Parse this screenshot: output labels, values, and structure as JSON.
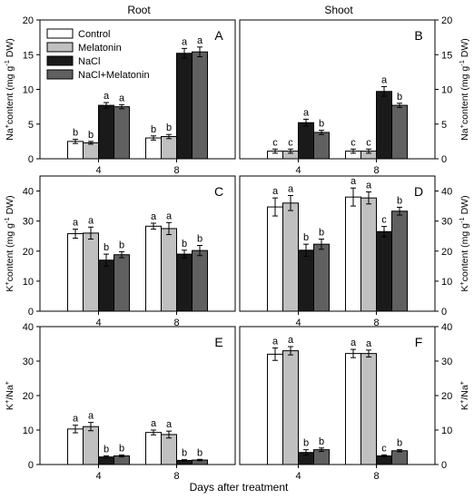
{
  "figure": {
    "col_titles": [
      "Root",
      "Shoot"
    ],
    "xlabel": "Days after treatment",
    "legend": [
      "Control",
      "Melatonin",
      "NaCl",
      "NaCl+Melatonin"
    ],
    "series_colors": [
      "#ffffff",
      "#c0c0c0",
      "#1a1a1a",
      "#606060"
    ]
  },
  "chart_data": [
    {
      "panel": "A",
      "type": "bar",
      "categories": [
        "4",
        "8"
      ],
      "ylabel_base": "Na",
      "ylabel_sup": "+",
      "ylabel_rest": "content (mg g",
      "ylabel_sup2": "-1",
      "ylabel_end": " DW)",
      "ylim": [
        0,
        20
      ],
      "yticks": [
        0,
        5,
        10,
        15,
        20
      ],
      "ytick_labels_side": "left",
      "series": [
        {
          "name": "Control",
          "values": [
            2.5,
            3.0
          ],
          "errors": [
            0.3,
            0.3
          ],
          "letters": [
            "b",
            "b"
          ]
        },
        {
          "name": "Melatonin",
          "values": [
            2.3,
            3.2
          ],
          "errors": [
            0.2,
            0.3
          ],
          "letters": [
            "b",
            "b"
          ]
        },
        {
          "name": "NaCl",
          "values": [
            7.7,
            15.2
          ],
          "errors": [
            0.4,
            0.7
          ],
          "letters": [
            "a",
            "a"
          ]
        },
        {
          "name": "NaCl+Melatonin",
          "values": [
            7.5,
            15.4
          ],
          "errors": [
            0.3,
            0.7
          ],
          "letters": [
            "a",
            "a"
          ]
        }
      ]
    },
    {
      "panel": "B",
      "type": "bar",
      "categories": [
        "4",
        "8"
      ],
      "ylabel_base": "Na",
      "ylabel_sup": "+",
      "ylabel_rest": "content (mg g",
      "ylabel_sup2": "-1",
      "ylabel_end": " DW)",
      "ylim": [
        0,
        20
      ],
      "yticks": [
        0,
        5,
        10,
        15,
        20
      ],
      "ytick_labels_side": "right",
      "series": [
        {
          "name": "Control",
          "values": [
            1.1,
            1.1
          ],
          "errors": [
            0.3,
            0.3
          ],
          "letters": [
            "c",
            "c"
          ]
        },
        {
          "name": "Melatonin",
          "values": [
            1.1,
            1.1
          ],
          "errors": [
            0.3,
            0.3
          ],
          "letters": [
            "c",
            "c"
          ]
        },
        {
          "name": "NaCl",
          "values": [
            5.2,
            9.7
          ],
          "errors": [
            0.5,
            0.7
          ],
          "letters": [
            "a",
            "a"
          ]
        },
        {
          "name": "NaCl+Melatonin",
          "values": [
            3.8,
            7.7
          ],
          "errors": [
            0.3,
            0.3
          ],
          "letters": [
            "b",
            "b"
          ]
        }
      ]
    },
    {
      "panel": "C",
      "type": "bar",
      "categories": [
        "4",
        "8"
      ],
      "ylabel_base": "K",
      "ylabel_sup": "+",
      "ylabel_rest": "content (mg g",
      "ylabel_sup2": "-1",
      "ylabel_end": " DW)",
      "ylim": [
        0,
        45
      ],
      "yticks": [
        0,
        10,
        20,
        30,
        40
      ],
      "ytick_labels_side": "left",
      "series": [
        {
          "name": "Control",
          "values": [
            25.8,
            28.3
          ],
          "errors": [
            1.5,
            1.0
          ],
          "letters": [
            "a",
            "a"
          ]
        },
        {
          "name": "Melatonin",
          "values": [
            26.0,
            27.5
          ],
          "errors": [
            2.0,
            2.0
          ],
          "letters": [
            "a",
            "a"
          ]
        },
        {
          "name": "NaCl",
          "values": [
            17.0,
            19.0
          ],
          "errors": [
            2.0,
            1.3
          ],
          "letters": [
            "b",
            "b"
          ]
        },
        {
          "name": "NaCl+Melatonin",
          "values": [
            18.8,
            20.2
          ],
          "errors": [
            1.0,
            1.7
          ],
          "letters": [
            "b",
            "b"
          ]
        }
      ]
    },
    {
      "panel": "D",
      "type": "bar",
      "categories": [
        "4",
        "8"
      ],
      "ylabel_base": "K",
      "ylabel_sup": "+",
      "ylabel_rest": "content (mg g",
      "ylabel_sup2": "-1",
      "ylabel_end": " DW)",
      "ylim": [
        0,
        45
      ],
      "yticks": [
        0,
        10,
        20,
        30,
        40
      ],
      "ytick_labels_side": "right",
      "series": [
        {
          "name": "Control",
          "values": [
            34.7,
            38.0
          ],
          "errors": [
            3.0,
            3.0
          ],
          "letters": [
            "a",
            "a"
          ]
        },
        {
          "name": "Melatonin",
          "values": [
            36.0,
            37.7
          ],
          "errors": [
            2.5,
            2.0
          ],
          "letters": [
            "a",
            "a"
          ]
        },
        {
          "name": "NaCl",
          "values": [
            20.3,
            26.5
          ],
          "errors": [
            2.0,
            1.7
          ],
          "letters": [
            "b",
            "c"
          ]
        },
        {
          "name": "NaCl+Melatonin",
          "values": [
            22.3,
            33.3
          ],
          "errors": [
            1.7,
            1.3
          ],
          "letters": [
            "b",
            "b"
          ]
        }
      ]
    },
    {
      "panel": "E",
      "type": "bar",
      "categories": [
        "4",
        "8"
      ],
      "ylabel_base": "K",
      "ylabel_sup": "+",
      "ylabel_rest": "/Na",
      "ylabel_sup2": "+",
      "ylabel_end": "",
      "ylim": [
        0,
        40
      ],
      "yticks": [
        0,
        10,
        20,
        30,
        40
      ],
      "ytick_labels_side": "left",
      "series": [
        {
          "name": "Control",
          "values": [
            10.3,
            9.3
          ],
          "errors": [
            1.1,
            0.7
          ],
          "letters": [
            "a",
            "a"
          ]
        },
        {
          "name": "Melatonin",
          "values": [
            11.0,
            8.7
          ],
          "errors": [
            1.2,
            1.0
          ],
          "letters": [
            "a",
            "a"
          ]
        },
        {
          "name": "NaCl",
          "values": [
            2.2,
            1.2
          ],
          "errors": [
            0.3,
            0.2
          ],
          "letters": [
            "b",
            "b"
          ]
        },
        {
          "name": "NaCl+Melatonin",
          "values": [
            2.5,
            1.3
          ],
          "errors": [
            0.3,
            0.2
          ],
          "letters": [
            "b",
            "b"
          ]
        }
      ]
    },
    {
      "panel": "F",
      "type": "bar",
      "categories": [
        "4",
        "8"
      ],
      "ylabel_base": "K",
      "ylabel_sup": "+",
      "ylabel_rest": "/Na",
      "ylabel_sup2": "+",
      "ylabel_end": "",
      "ylim": [
        0,
        40
      ],
      "yticks": [
        0,
        10,
        20,
        30,
        40
      ],
      "ytick_labels_side": "right",
      "series": [
        {
          "name": "Control",
          "values": [
            32.0,
            32.2
          ],
          "errors": [
            1.8,
            1.2
          ],
          "letters": [
            "a",
            "a"
          ]
        },
        {
          "name": "Melatonin",
          "values": [
            33.0,
            32.2
          ],
          "errors": [
            1.2,
            1.0
          ],
          "letters": [
            "a",
            "a"
          ]
        },
        {
          "name": "NaCl",
          "values": [
            3.5,
            2.5
          ],
          "errors": [
            0.8,
            0.3
          ],
          "letters": [
            "b",
            "c"
          ]
        },
        {
          "name": "NaCl+Melatonin",
          "values": [
            4.3,
            4.0
          ],
          "errors": [
            0.5,
            0.3
          ],
          "letters": [
            "b",
            "b"
          ]
        }
      ]
    }
  ]
}
